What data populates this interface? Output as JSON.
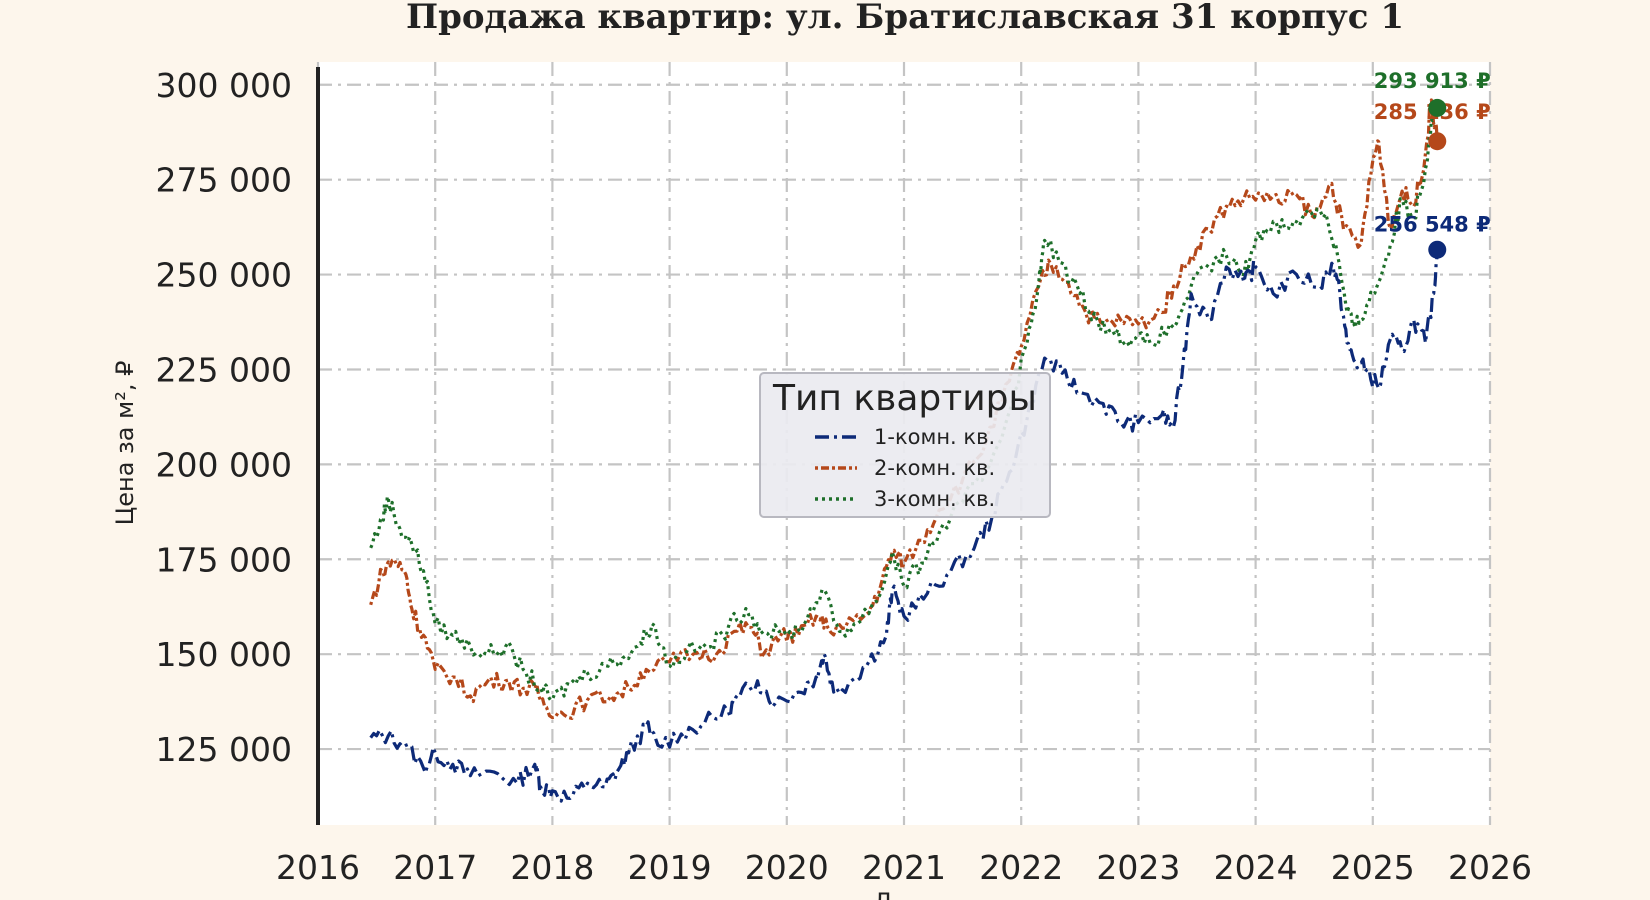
{
  "chart_data": {
    "type": "line",
    "title": "Продажа квартир: ул. Братиславская 31 корпус 1",
    "xlabel": "Д",
    "ylabel": "Цена за м², ₽",
    "xlim": [
      2016,
      2026
    ],
    "ylim": [
      105000,
      306000
    ],
    "x_ticks": [
      2016,
      2017,
      2018,
      2019,
      2020,
      2021,
      2022,
      2023,
      2024,
      2025,
      2026
    ],
    "x_tick_labels": [
      "2016",
      "2017",
      "2018",
      "2019",
      "2020",
      "2021",
      "2022",
      "2023",
      "2024",
      "2025",
      "2026"
    ],
    "y_ticks": [
      125000,
      150000,
      175000,
      200000,
      225000,
      250000,
      275000,
      300000
    ],
    "y_tick_labels": [
      "125 000",
      "150 000",
      "175 000",
      "200 000",
      "225 000",
      "250 000",
      "275 000",
      "300 000"
    ],
    "grid": true,
    "legend": {
      "title": "Тип квартиры",
      "placement": "center"
    },
    "series": [
      {
        "name": "1-комн. кв.",
        "color": "#0d2a78",
        "dash": "dashdot",
        "end_label": "256 548 ₽",
        "end_value": 256548,
        "points": [
          [
            2016.45,
            128000
          ],
          [
            2016.6,
            128500
          ],
          [
            2016.75,
            126000
          ],
          [
            2016.9,
            120000
          ],
          [
            2017.0,
            124000
          ],
          [
            2017.15,
            121000
          ],
          [
            2017.3,
            118000
          ],
          [
            2017.5,
            119000
          ],
          [
            2017.7,
            116000
          ],
          [
            2017.85,
            121000
          ],
          [
            2017.9,
            115000
          ],
          [
            2018.0,
            114000
          ],
          [
            2018.15,
            112000
          ],
          [
            2018.3,
            116000
          ],
          [
            2018.45,
            115000
          ],
          [
            2018.55,
            119000
          ],
          [
            2018.65,
            124000
          ],
          [
            2018.8,
            131000
          ],
          [
            2018.9,
            126000
          ],
          [
            2019.1,
            129000
          ],
          [
            2019.3,
            132000
          ],
          [
            2019.5,
            135000
          ],
          [
            2019.6,
            139000
          ],
          [
            2019.75,
            143000
          ],
          [
            2019.9,
            137000
          ],
          [
            2020.1,
            140000
          ],
          [
            2020.25,
            144000
          ],
          [
            2020.32,
            150000
          ],
          [
            2020.4,
            140000
          ],
          [
            2020.55,
            143000
          ],
          [
            2020.7,
            148000
          ],
          [
            2020.85,
            155000
          ],
          [
            2020.9,
            167000
          ],
          [
            2021.0,
            160000
          ],
          [
            2021.2,
            166000
          ],
          [
            2021.4,
            172000
          ],
          [
            2021.6,
            178000
          ],
          [
            2021.75,
            186000
          ],
          [
            2021.9,
            198000
          ],
          [
            2022.05,
            212000
          ],
          [
            2022.2,
            228000
          ],
          [
            2022.35,
            224000
          ],
          [
            2022.5,
            219000
          ],
          [
            2022.7,
            216000
          ],
          [
            2022.85,
            211000
          ],
          [
            2023.0,
            211000
          ],
          [
            2023.2,
            213000
          ],
          [
            2023.3,
            210000
          ],
          [
            2023.38,
            226000
          ],
          [
            2023.45,
            245000
          ],
          [
            2023.6,
            238000
          ],
          [
            2023.75,
            252000
          ],
          [
            2023.9,
            248000
          ],
          [
            2024.0,
            252000
          ],
          [
            2024.15,
            245000
          ],
          [
            2024.35,
            250000
          ],
          [
            2024.55,
            247000
          ],
          [
            2024.65,
            253000
          ],
          [
            2024.72,
            245000
          ],
          [
            2024.78,
            232000
          ],
          [
            2024.85,
            227000
          ],
          [
            2024.95,
            225000
          ],
          [
            2025.05,
            220000
          ],
          [
            2025.15,
            233000
          ],
          [
            2025.25,
            230000
          ],
          [
            2025.35,
            238000
          ],
          [
            2025.45,
            232000
          ],
          [
            2025.52,
            245000
          ],
          [
            2025.55,
            256548
          ]
        ]
      },
      {
        "name": "2-комн. кв.",
        "color": "#b5481a",
        "dash": "dotdash",
        "end_label": "285 136 ₽",
        "end_value": 285136,
        "points": [
          [
            2016.45,
            163000
          ],
          [
            2016.55,
            172000
          ],
          [
            2016.65,
            175000
          ],
          [
            2016.75,
            171000
          ],
          [
            2016.8,
            162000
          ],
          [
            2016.9,
            155000
          ],
          [
            2017.0,
            146000
          ],
          [
            2017.15,
            144000
          ],
          [
            2017.3,
            139000
          ],
          [
            2017.45,
            143000
          ],
          [
            2017.6,
            143000
          ],
          [
            2017.75,
            141000
          ],
          [
            2017.85,
            141000
          ],
          [
            2017.95,
            136000
          ],
          [
            2018.1,
            134000
          ],
          [
            2018.3,
            138000
          ],
          [
            2018.5,
            139000
          ],
          [
            2018.65,
            141000
          ],
          [
            2018.8,
            146000
          ],
          [
            2019.0,
            148000
          ],
          [
            2019.2,
            150000
          ],
          [
            2019.4,
            150000
          ],
          [
            2019.55,
            156000
          ],
          [
            2019.7,
            157000
          ],
          [
            2019.8,
            150000
          ],
          [
            2019.95,
            155000
          ],
          [
            2020.1,
            155000
          ],
          [
            2020.25,
            160000
          ],
          [
            2020.35,
            157000
          ],
          [
            2020.5,
            157000
          ],
          [
            2020.7,
            161000
          ],
          [
            2020.8,
            168000
          ],
          [
            2020.9,
            177000
          ],
          [
            2021.0,
            174000
          ],
          [
            2021.15,
            180000
          ],
          [
            2021.3,
            188000
          ],
          [
            2021.5,
            196000
          ],
          [
            2021.7,
            206000
          ],
          [
            2021.9,
            222000
          ],
          [
            2022.0,
            231000
          ],
          [
            2022.15,
            247000
          ],
          [
            2022.25,
            253000
          ],
          [
            2022.4,
            248000
          ],
          [
            2022.55,
            240000
          ],
          [
            2022.7,
            237000
          ],
          [
            2022.85,
            238000
          ],
          [
            2023.0,
            237000
          ],
          [
            2023.2,
            240000
          ],
          [
            2023.3,
            247000
          ],
          [
            2023.45,
            255000
          ],
          [
            2023.6,
            262000
          ],
          [
            2023.75,
            268000
          ],
          [
            2023.9,
            270000
          ],
          [
            2024.05,
            271000
          ],
          [
            2024.2,
            269000
          ],
          [
            2024.35,
            271000
          ],
          [
            2024.5,
            265000
          ],
          [
            2024.65,
            274000
          ],
          [
            2024.75,
            262000
          ],
          [
            2024.9,
            258000
          ],
          [
            2025.0,
            280000
          ],
          [
            2025.05,
            285000
          ],
          [
            2025.15,
            262000
          ],
          [
            2025.25,
            272000
          ],
          [
            2025.35,
            268000
          ],
          [
            2025.45,
            282000
          ],
          [
            2025.5,
            296000
          ],
          [
            2025.55,
            285136
          ]
        ]
      },
      {
        "name": "3-комн. кв.",
        "color": "#1e6f2a",
        "dash": "dotted",
        "end_label": "293 913 ₽",
        "end_value": 293913,
        "points": [
          [
            2016.45,
            178000
          ],
          [
            2016.55,
            186000
          ],
          [
            2016.6,
            191000
          ],
          [
            2016.7,
            183000
          ],
          [
            2016.8,
            179000
          ],
          [
            2016.9,
            172000
          ],
          [
            2017.0,
            158000
          ],
          [
            2017.15,
            155000
          ],
          [
            2017.3,
            152000
          ],
          [
            2017.45,
            150000
          ],
          [
            2017.6,
            152000
          ],
          [
            2017.75,
            146000
          ],
          [
            2017.9,
            141000
          ],
          [
            2018.0,
            138000
          ],
          [
            2018.15,
            142000
          ],
          [
            2018.3,
            145000
          ],
          [
            2018.45,
            147000
          ],
          [
            2018.6,
            149000
          ],
          [
            2018.75,
            153000
          ],
          [
            2018.85,
            158000
          ],
          [
            2019.0,
            147000
          ],
          [
            2019.15,
            151000
          ],
          [
            2019.35,
            152000
          ],
          [
            2019.5,
            157000
          ],
          [
            2019.65,
            162000
          ],
          [
            2019.8,
            156000
          ],
          [
            2020.0,
            155000
          ],
          [
            2020.15,
            158000
          ],
          [
            2020.3,
            167000
          ],
          [
            2020.45,
            156000
          ],
          [
            2020.6,
            158000
          ],
          [
            2020.8,
            166000
          ],
          [
            2020.9,
            177000
          ],
          [
            2021.0,
            168000
          ],
          [
            2021.15,
            174000
          ],
          [
            2021.3,
            182000
          ],
          [
            2021.5,
            190000
          ],
          [
            2021.7,
            198000
          ],
          [
            2021.9,
            214000
          ],
          [
            2022.05,
            232000
          ],
          [
            2022.15,
            248000
          ],
          [
            2022.2,
            259000
          ],
          [
            2022.35,
            253000
          ],
          [
            2022.5,
            245000
          ],
          [
            2022.65,
            238000
          ],
          [
            2022.8,
            234000
          ],
          [
            2022.95,
            233000
          ],
          [
            2023.1,
            232000
          ],
          [
            2023.3,
            236000
          ],
          [
            2023.45,
            247000
          ],
          [
            2023.6,
            252000
          ],
          [
            2023.75,
            255000
          ],
          [
            2023.9,
            250000
          ],
          [
            2024.0,
            259000
          ],
          [
            2024.15,
            264000
          ],
          [
            2024.3,
            262000
          ],
          [
            2024.45,
            267000
          ],
          [
            2024.6,
            266000
          ],
          [
            2024.7,
            255000
          ],
          [
            2024.78,
            240000
          ],
          [
            2024.85,
            236000
          ],
          [
            2024.95,
            242000
          ],
          [
            2025.05,
            248000
          ],
          [
            2025.15,
            258000
          ],
          [
            2025.25,
            270000
          ],
          [
            2025.35,
            265000
          ],
          [
            2025.45,
            278000
          ],
          [
            2025.5,
            291000
          ],
          [
            2025.55,
            293913
          ]
        ]
      }
    ]
  }
}
